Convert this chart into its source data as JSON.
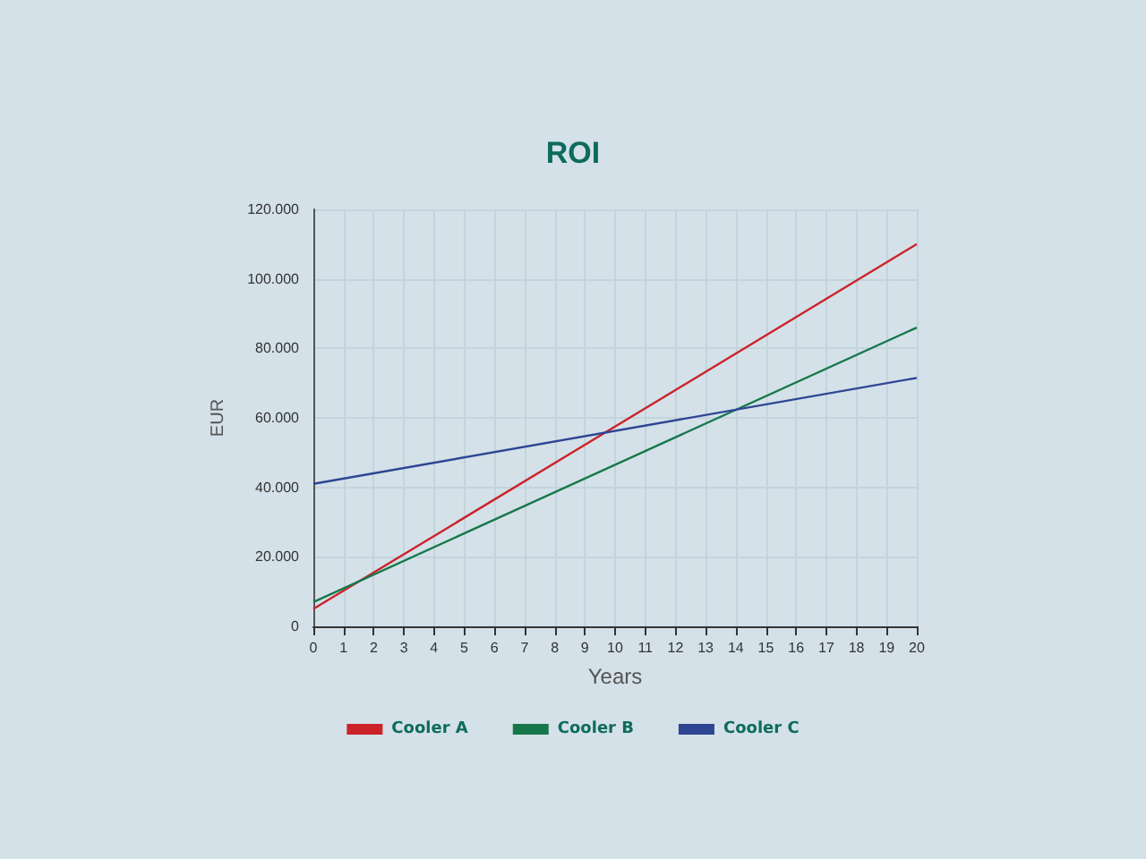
{
  "chart_data": {
    "type": "line",
    "title": "ROI",
    "xlabel": "Years",
    "ylabel": "EUR",
    "x": [
      0,
      20
    ],
    "series": [
      {
        "name": "Cooler A",
        "color": "#cc2229",
        "values": [
          5000,
          110000
        ]
      },
      {
        "name": "Cooler B",
        "color": "#16784a",
        "values": [
          7000,
          86000
        ]
      },
      {
        "name": "Cooler C",
        "color": "#2e4593",
        "values": [
          41000,
          71500
        ]
      }
    ],
    "xlim": [
      0,
      20
    ],
    "xticks": [
      0,
      1,
      2,
      3,
      4,
      5,
      6,
      7,
      8,
      9,
      10,
      11,
      12,
      13,
      14,
      15,
      16,
      17,
      18,
      19,
      20
    ],
    "ylim": [
      0,
      120000
    ],
    "yticks": [
      0,
      {
        "value": 20000,
        "label": "20.000"
      },
      {
        "value": 40000,
        "label": "40.000"
      },
      {
        "value": 60000,
        "label": "60.000"
      },
      {
        "value": 80000,
        "label": "80.000"
      },
      {
        "value": 100000,
        "label": "100.000"
      },
      {
        "value": 120000,
        "label": "120.000"
      }
    ],
    "grid": true,
    "legend": "bottom",
    "marker": "none",
    "line_style": "solid"
  }
}
